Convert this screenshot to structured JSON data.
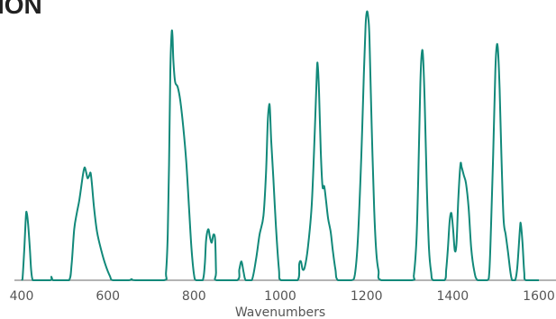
{
  "page": {
    "title_fragment": "ION"
  },
  "chart_data": {
    "type": "line",
    "title": "",
    "xlabel": "Wavenumbers",
    "ylabel": "",
    "xlim": [
      400,
      1600
    ],
    "ylim": [
      0,
      1
    ],
    "xticks": [
      400,
      600,
      800,
      1000,
      1200,
      1400,
      1600
    ],
    "grid": false,
    "legend": "none",
    "line_color": "#12897a",
    "axis_color": "#9a9a9a",
    "series": [
      {
        "values": [
          [
            400,
            0.0
          ],
          [
            402,
            0.004
          ],
          [
            406,
            0.11
          ],
          [
            410,
            0.24
          ],
          [
            412,
            0.25
          ],
          [
            415,
            0.21
          ],
          [
            419,
            0.12
          ],
          [
            422,
            0.04
          ],
          [
            425,
            0.004
          ],
          [
            430,
            0.0
          ],
          [
            466,
            0.0
          ],
          [
            469,
            0.013
          ],
          [
            473,
            0.0
          ],
          [
            488,
            0.0
          ],
          [
            510,
            0.0
          ],
          [
            516,
            0.06
          ],
          [
            522,
            0.19
          ],
          [
            528,
            0.25
          ],
          [
            534,
            0.3
          ],
          [
            542,
            0.39
          ],
          [
            546,
            0.42
          ],
          [
            550,
            0.4
          ],
          [
            553,
            0.38
          ],
          [
            557,
            0.39
          ],
          [
            560,
            0.4
          ],
          [
            563,
            0.36
          ],
          [
            568,
            0.27
          ],
          [
            575,
            0.18
          ],
          [
            585,
            0.11
          ],
          [
            595,
            0.055
          ],
          [
            605,
            0.015
          ],
          [
            612,
            0.0
          ],
          [
            648,
            0.0
          ],
          [
            655,
            0.004
          ],
          [
            664,
            0.0
          ],
          [
            730,
            0.0
          ],
          [
            735,
            0.03
          ],
          [
            739,
            0.17
          ],
          [
            742,
            0.43
          ],
          [
            745,
            0.78
          ],
          [
            748,
            0.92
          ],
          [
            750,
            0.91
          ],
          [
            752,
            0.82
          ],
          [
            756,
            0.74
          ],
          [
            762,
            0.72
          ],
          [
            768,
            0.67
          ],
          [
            775,
            0.57
          ],
          [
            782,
            0.44
          ],
          [
            788,
            0.28
          ],
          [
            794,
            0.12
          ],
          [
            800,
            0.02
          ],
          [
            805,
            0.0
          ],
          [
            820,
            0.0
          ],
          [
            825,
            0.06
          ],
          [
            828,
            0.15
          ],
          [
            833,
            0.19
          ],
          [
            837,
            0.16
          ],
          [
            841,
            0.14
          ],
          [
            845,
            0.17
          ],
          [
            849,
            0.15
          ],
          [
            851,
            0.03
          ],
          [
            852,
            0.0
          ],
          [
            900,
            0.0
          ],
          [
            905,
            0.04
          ],
          [
            910,
            0.07
          ],
          [
            915,
            0.03
          ],
          [
            920,
            0.0
          ],
          [
            934,
            0.0
          ],
          [
            944,
            0.08
          ],
          [
            952,
            0.17
          ],
          [
            961,
            0.24
          ],
          [
            967,
            0.4
          ],
          [
            971,
            0.59
          ],
          [
            974,
            0.65
          ],
          [
            976,
            0.64
          ],
          [
            979,
            0.52
          ],
          [
            984,
            0.38
          ],
          [
            990,
            0.2
          ],
          [
            997,
            0.04
          ],
          [
            1002,
            0.0
          ],
          [
            1040,
            0.0
          ],
          [
            1044,
            0.06
          ],
          [
            1048,
            0.07
          ],
          [
            1052,
            0.04
          ],
          [
            1057,
            0.05
          ],
          [
            1064,
            0.12
          ],
          [
            1073,
            0.28
          ],
          [
            1080,
            0.55
          ],
          [
            1085,
            0.78
          ],
          [
            1087,
            0.8
          ],
          [
            1090,
            0.7
          ],
          [
            1094,
            0.48
          ],
          [
            1098,
            0.35
          ],
          [
            1102,
            0.35
          ],
          [
            1106,
            0.3
          ],
          [
            1111,
            0.23
          ],
          [
            1117,
            0.18
          ],
          [
            1122,
            0.11
          ],
          [
            1128,
            0.04
          ],
          [
            1134,
            0.0
          ],
          [
            1165,
            0.0
          ],
          [
            1173,
            0.02
          ],
          [
            1180,
            0.15
          ],
          [
            1188,
            0.46
          ],
          [
            1194,
            0.77
          ],
          [
            1198,
            0.95
          ],
          [
            1201,
            1.0
          ],
          [
            1204,
            0.98
          ],
          [
            1207,
            0.9
          ],
          [
            1212,
            0.58
          ],
          [
            1218,
            0.26
          ],
          [
            1223,
            0.1
          ],
          [
            1228,
            0.035
          ],
          [
            1235,
            0.0
          ],
          [
            1305,
            0.0
          ],
          [
            1310,
            0.02
          ],
          [
            1316,
            0.15
          ],
          [
            1320,
            0.37
          ],
          [
            1325,
            0.73
          ],
          [
            1328,
            0.84
          ],
          [
            1331,
            0.84
          ],
          [
            1335,
            0.67
          ],
          [
            1340,
            0.35
          ],
          [
            1345,
            0.12
          ],
          [
            1350,
            0.03
          ],
          [
            1355,
            0.0
          ],
          [
            1381,
            0.0
          ],
          [
            1385,
            0.04
          ],
          [
            1389,
            0.12
          ],
          [
            1393,
            0.22
          ],
          [
            1397,
            0.25
          ],
          [
            1401,
            0.19
          ],
          [
            1405,
            0.11
          ],
          [
            1409,
            0.14
          ],
          [
            1413,
            0.3
          ],
          [
            1418,
            0.43
          ],
          [
            1421,
            0.42
          ],
          [
            1426,
            0.39
          ],
          [
            1431,
            0.36
          ],
          [
            1437,
            0.27
          ],
          [
            1443,
            0.12
          ],
          [
            1450,
            0.035
          ],
          [
            1458,
            0.0
          ],
          [
            1480,
            0.0
          ],
          [
            1485,
            0.03
          ],
          [
            1489,
            0.2
          ],
          [
            1494,
            0.47
          ],
          [
            1499,
            0.78
          ],
          [
            1502,
            0.87
          ],
          [
            1505,
            0.86
          ],
          [
            1509,
            0.71
          ],
          [
            1513,
            0.47
          ],
          [
            1518,
            0.23
          ],
          [
            1523,
            0.17
          ],
          [
            1528,
            0.11
          ],
          [
            1534,
            0.03
          ],
          [
            1538,
            0.0
          ],
          [
            1545,
            0.0
          ],
          [
            1550,
            0.05
          ],
          [
            1556,
            0.19
          ],
          [
            1558,
            0.21
          ],
          [
            1562,
            0.14
          ],
          [
            1566,
            0.03
          ],
          [
            1570,
            0.0
          ],
          [
            1600,
            0.0
          ]
        ]
      }
    ]
  }
}
